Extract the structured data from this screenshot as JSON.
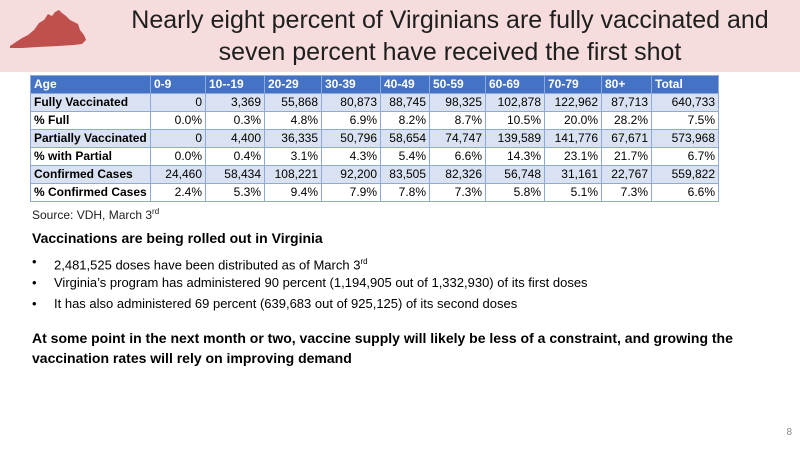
{
  "slide": {
    "title_line1": "Nearly eight percent of Virginians are fully vaccinated and",
    "title_line2": "seven percent have received the first shot",
    "page_number": "8",
    "colors": {
      "header_bg": "#f6dcdc",
      "map_fill": "#c0504d",
      "table_header": "#4472c4",
      "table_band": "#d9e2f3",
      "table_border": "#8eaadb"
    }
  },
  "table": {
    "headers": [
      "Age",
      "0-9",
      "10--19",
      "20-29",
      "30-39",
      "40-49",
      "50-59",
      "60-69",
      "70-79",
      "80+",
      "Total"
    ],
    "rows": [
      {
        "label": "Fully Vaccinated",
        "values": [
          "0",
          "3,369",
          "55,868",
          "80,873",
          "88,745",
          "98,325",
          "102,878",
          "122,962",
          "87,713",
          "640,733"
        ]
      },
      {
        "label": "% Full",
        "values": [
          "0.0%",
          "0.3%",
          "4.8%",
          "6.9%",
          "8.2%",
          "8.7%",
          "10.5%",
          "20.0%",
          "28.2%",
          "7.5%"
        ]
      },
      {
        "label": "Partially Vaccinated",
        "values": [
          "0",
          "4,400",
          "36,335",
          "50,796",
          "58,654",
          "74,747",
          "139,589",
          "141,776",
          "67,671",
          "573,968"
        ]
      },
      {
        "label": "% with Partial",
        "values": [
          "0.0%",
          "0.4%",
          "3.1%",
          "4.3%",
          "5.4%",
          "6.6%",
          "14.3%",
          "23.1%",
          "21.7%",
          "6.7%"
        ]
      },
      {
        "label": "Confirmed Cases",
        "values": [
          "24,460",
          "58,434",
          "108,221",
          "92,200",
          "83,505",
          "82,326",
          "56,748",
          "31,161",
          "22,767",
          "559,822"
        ]
      },
      {
        "label": "% Confirmed Cases",
        "values": [
          "2.4%",
          "5.3%",
          "9.4%",
          "7.9%",
          "7.8%",
          "7.3%",
          "5.8%",
          "5.1%",
          "7.3%",
          "6.6%"
        ]
      }
    ]
  },
  "source": {
    "text": "Source: VDH, March 3",
    "sup": "rd"
  },
  "body": {
    "heading": "Vaccinations are being rolled out in Virginia",
    "bullet1_text": "2,481,525 doses have been distributed as of March 3",
    "bullet1_sup": "rd",
    "bullet2": "Virginia’s program has administered 90 percent (1,194,905 out of 1,332,930) of its first doses",
    "bullet3": "It has also administered 69 percent (639,683 out of 925,125) of its second doses",
    "conclusion": "At some point in the next month or two, vaccine supply will likely be less of a constraint, and growing the vaccination rates will rely on improving demand"
  }
}
